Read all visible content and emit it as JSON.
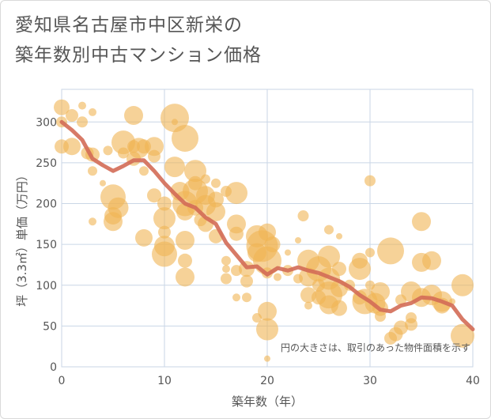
{
  "title": {
    "line1": "愛知県名古屋市中区新栄の",
    "line2": "築年数別中古マンション価格"
  },
  "chart_data": {
    "type": "scatter",
    "title": "愛知県名古屋市中区新栄の築年数別中古マンション価格",
    "xlabel": "築年数（年）",
    "ylabel": "坪（3.3㎡）単価（万円）",
    "xlim": [
      0,
      40
    ],
    "ylim": [
      0,
      340
    ],
    "x_ticks": [
      0,
      10,
      20,
      30,
      40
    ],
    "y_ticks": [
      0,
      50,
      100,
      150,
      200,
      250,
      300
    ],
    "grid": true,
    "annotation": "円の大きさは、取引のあった物件面積を示す",
    "colors": {
      "bubble": "#f0b454",
      "line": "#d36b57",
      "grid": "#c9d6e6"
    },
    "series": [
      {
        "type": "scatter",
        "points": [
          {
            "x": 0,
            "y": 318,
            "s": 10
          },
          {
            "x": 0,
            "y": 300,
            "s": 7
          },
          {
            "x": 0,
            "y": 270,
            "s": 9
          },
          {
            "x": 1,
            "y": 308,
            "s": 8
          },
          {
            "x": 1,
            "y": 270,
            "s": 11
          },
          {
            "x": 2,
            "y": 320,
            "s": 5
          },
          {
            "x": 2,
            "y": 300,
            "s": 7
          },
          {
            "x": 2.5,
            "y": 262,
            "s": 8
          },
          {
            "x": 3,
            "y": 312,
            "s": 5
          },
          {
            "x": 3,
            "y": 260,
            "s": 9
          },
          {
            "x": 3,
            "y": 240,
            "s": 6
          },
          {
            "x": 3,
            "y": 178,
            "s": 5
          },
          {
            "x": 4,
            "y": 225,
            "s": 4
          },
          {
            "x": 4.5,
            "y": 265,
            "s": 6
          },
          {
            "x": 5,
            "y": 208,
            "s": 16
          },
          {
            "x": 5,
            "y": 185,
            "s": 11
          },
          {
            "x": 5,
            "y": 178,
            "s": 12
          },
          {
            "x": 5.5,
            "y": 195,
            "s": 13
          },
          {
            "x": 6,
            "y": 275,
            "s": 15
          },
          {
            "x": 6,
            "y": 262,
            "s": 7
          },
          {
            "x": 7,
            "y": 308,
            "s": 12
          },
          {
            "x": 7,
            "y": 270,
            "s": 8
          },
          {
            "x": 7,
            "y": 255,
            "s": 9
          },
          {
            "x": 7.5,
            "y": 268,
            "s": 13
          },
          {
            "x": 8,
            "y": 270,
            "s": 9
          },
          {
            "x": 8,
            "y": 240,
            "s": 6
          },
          {
            "x": 8,
            "y": 158,
            "s": 11
          },
          {
            "x": 9,
            "y": 270,
            "s": 12
          },
          {
            "x": 9,
            "y": 258,
            "s": 8
          },
          {
            "x": 9,
            "y": 210,
            "s": 9
          },
          {
            "x": 10,
            "y": 200,
            "s": 9
          },
          {
            "x": 10,
            "y": 182,
            "s": 14
          },
          {
            "x": 10,
            "y": 165,
            "s": 8
          },
          {
            "x": 10,
            "y": 148,
            "s": 13
          },
          {
            "x": 10,
            "y": 138,
            "s": 16
          },
          {
            "x": 11,
            "y": 305,
            "s": 18
          },
          {
            "x": 11,
            "y": 245,
            "s": 13
          },
          {
            "x": 11,
            "y": 300,
            "s": 4
          },
          {
            "x": 11.5,
            "y": 215,
            "s": 12
          },
          {
            "x": 12,
            "y": 280,
            "s": 17
          },
          {
            "x": 12,
            "y": 200,
            "s": 16
          },
          {
            "x": 12,
            "y": 190,
            "s": 11
          },
          {
            "x": 12,
            "y": 155,
            "s": 12
          },
          {
            "x": 12,
            "y": 130,
            "s": 9
          },
          {
            "x": 12,
            "y": 110,
            "s": 12
          },
          {
            "x": 13,
            "y": 240,
            "s": 14
          },
          {
            "x": 13,
            "y": 225,
            "s": 9
          },
          {
            "x": 13,
            "y": 215,
            "s": 16
          },
          {
            "x": 13,
            "y": 195,
            "s": 10
          },
          {
            "x": 13.5,
            "y": 180,
            "s": 8
          },
          {
            "x": 14,
            "y": 230,
            "s": 6
          },
          {
            "x": 14,
            "y": 210,
            "s": 12
          },
          {
            "x": 14,
            "y": 198,
            "s": 13
          },
          {
            "x": 14,
            "y": 175,
            "s": 10
          },
          {
            "x": 15,
            "y": 225,
            "s": 6
          },
          {
            "x": 15,
            "y": 205,
            "s": 10
          },
          {
            "x": 15,
            "y": 190,
            "s": 12
          },
          {
            "x": 15,
            "y": 160,
            "s": 9
          },
          {
            "x": 16,
            "y": 215,
            "s": 7
          },
          {
            "x": 16,
            "y": 130,
            "s": 6
          },
          {
            "x": 16,
            "y": 120,
            "s": 5
          },
          {
            "x": 16,
            "y": 108,
            "s": 7
          },
          {
            "x": 17,
            "y": 213,
            "s": 14
          },
          {
            "x": 17,
            "y": 175,
            "s": 12
          },
          {
            "x": 17,
            "y": 163,
            "s": 9
          },
          {
            "x": 17,
            "y": 118,
            "s": 7
          },
          {
            "x": 17,
            "y": 85,
            "s": 5
          },
          {
            "x": 18,
            "y": 120,
            "s": 10
          },
          {
            "x": 18,
            "y": 105,
            "s": 8
          },
          {
            "x": 18,
            "y": 85,
            "s": 6
          },
          {
            "x": 19,
            "y": 160,
            "s": 14
          },
          {
            "x": 19,
            "y": 140,
            "s": 12
          },
          {
            "x": 19,
            "y": 60,
            "s": 6
          },
          {
            "x": 19.5,
            "y": 148,
            "s": 20
          },
          {
            "x": 20,
            "y": 165,
            "s": 11
          },
          {
            "x": 20,
            "y": 130,
            "s": 18
          },
          {
            "x": 20,
            "y": 115,
            "s": 7
          },
          {
            "x": 20,
            "y": 68,
            "s": 12
          },
          {
            "x": 20,
            "y": 46,
            "s": 14
          },
          {
            "x": 20,
            "y": 10,
            "s": 4
          },
          {
            "x": 20.5,
            "y": 150,
            "s": 10
          },
          {
            "x": 21,
            "y": 110,
            "s": 5
          },
          {
            "x": 22,
            "y": 140,
            "s": 4
          },
          {
            "x": 22,
            "y": 118,
            "s": 7
          },
          {
            "x": 23,
            "y": 155,
            "s": 4
          },
          {
            "x": 23,
            "y": 108,
            "s": 6
          },
          {
            "x": 23.5,
            "y": 185,
            "s": 7
          },
          {
            "x": 24,
            "y": 130,
            "s": 14
          },
          {
            "x": 24,
            "y": 110,
            "s": 12
          },
          {
            "x": 24,
            "y": 88,
            "s": 10
          },
          {
            "x": 24,
            "y": 75,
            "s": 5
          },
          {
            "x": 25,
            "y": 120,
            "s": 16
          },
          {
            "x": 25,
            "y": 100,
            "s": 8
          },
          {
            "x": 25,
            "y": 85,
            "s": 9
          },
          {
            "x": 26,
            "y": 168,
            "s": 6
          },
          {
            "x": 26,
            "y": 135,
            "s": 14
          },
          {
            "x": 26,
            "y": 108,
            "s": 14
          },
          {
            "x": 26,
            "y": 88,
            "s": 17
          },
          {
            "x": 26,
            "y": 76,
            "s": 12
          },
          {
            "x": 27,
            "y": 160,
            "s": 4
          },
          {
            "x": 27,
            "y": 120,
            "s": 9
          },
          {
            "x": 27,
            "y": 96,
            "s": 11
          },
          {
            "x": 27,
            "y": 72,
            "s": 10
          },
          {
            "x": 28,
            "y": 100,
            "s": 7
          },
          {
            "x": 29,
            "y": 130,
            "s": 10
          },
          {
            "x": 29,
            "y": 120,
            "s": 14
          },
          {
            "x": 29,
            "y": 85,
            "s": 9
          },
          {
            "x": 29.5,
            "y": 80,
            "s": 16
          },
          {
            "x": 30,
            "y": 228,
            "s": 7
          },
          {
            "x": 30,
            "y": 140,
            "s": 6
          },
          {
            "x": 30,
            "y": 100,
            "s": 6
          },
          {
            "x": 30.5,
            "y": 78,
            "s": 13
          },
          {
            "x": 31,
            "y": 92,
            "s": 12
          },
          {
            "x": 31,
            "y": 72,
            "s": 10
          },
          {
            "x": 31,
            "y": 62,
            "s": 7
          },
          {
            "x": 32,
            "y": 142,
            "s": 17
          },
          {
            "x": 32,
            "y": 35,
            "s": 8
          },
          {
            "x": 32.5,
            "y": 40,
            "s": 9
          },
          {
            "x": 33,
            "y": 48,
            "s": 9
          },
          {
            "x": 33,
            "y": 82,
            "s": 7
          },
          {
            "x": 34,
            "y": 92,
            "s": 13
          },
          {
            "x": 34,
            "y": 52,
            "s": 8
          },
          {
            "x": 34,
            "y": 60,
            "s": 7
          },
          {
            "x": 35,
            "y": 178,
            "s": 12
          },
          {
            "x": 35,
            "y": 128,
            "s": 12
          },
          {
            "x": 35,
            "y": 85,
            "s": 12
          },
          {
            "x": 36,
            "y": 130,
            "s": 12
          },
          {
            "x": 36,
            "y": 88,
            "s": 13
          },
          {
            "x": 37,
            "y": 80,
            "s": 13
          },
          {
            "x": 37,
            "y": 75,
            "s": 10
          },
          {
            "x": 38,
            "y": 80,
            "s": 4
          },
          {
            "x": 39,
            "y": 100,
            "s": 14
          },
          {
            "x": 39,
            "y": 38,
            "s": 15
          }
        ]
      },
      {
        "type": "line",
        "points": [
          [
            0,
            300
          ],
          [
            1,
            290
          ],
          [
            2,
            278
          ],
          [
            3,
            255
          ],
          [
            4,
            247
          ],
          [
            5,
            240
          ],
          [
            6,
            246
          ],
          [
            7,
            253
          ],
          [
            8,
            253
          ],
          [
            9,
            240
          ],
          [
            10,
            225
          ],
          [
            11,
            212
          ],
          [
            12,
            200
          ],
          [
            13,
            195
          ],
          [
            14,
            183
          ],
          [
            15,
            175
          ],
          [
            16,
            152
          ],
          [
            17,
            137
          ],
          [
            18,
            122
          ],
          [
            19,
            123
          ],
          [
            20,
            113
          ],
          [
            21,
            121
          ],
          [
            22,
            118
          ],
          [
            23,
            122
          ],
          [
            24,
            118
          ],
          [
            25,
            115
          ],
          [
            26,
            110
          ],
          [
            27,
            105
          ],
          [
            28,
            98
          ],
          [
            29,
            88
          ],
          [
            30,
            80
          ],
          [
            31,
            70
          ],
          [
            32,
            68
          ],
          [
            33,
            75
          ],
          [
            34,
            78
          ],
          [
            35,
            85
          ],
          [
            36,
            84
          ],
          [
            37,
            80
          ],
          [
            38,
            75
          ],
          [
            39,
            58
          ],
          [
            40,
            46
          ]
        ]
      }
    ]
  }
}
